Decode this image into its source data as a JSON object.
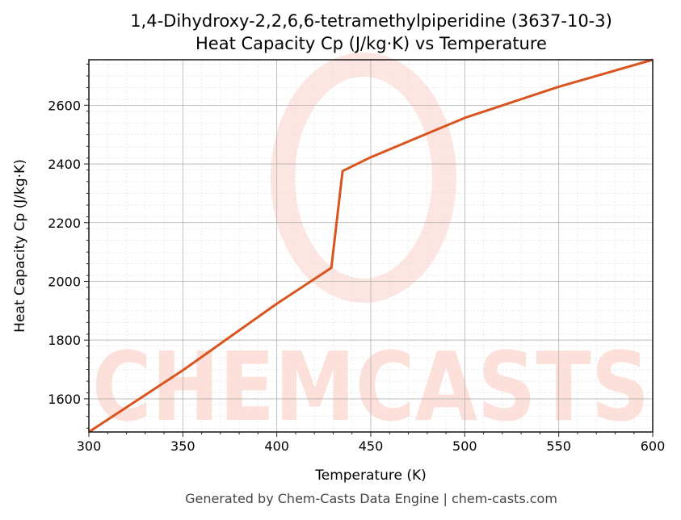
{
  "header": {
    "title_line1": "1,4-Dihydroxy-2,2,6,6-tetramethylpiperidine (3637-10-3)",
    "title_line2": "Heat Capacity Cp (J/kg·K) vs Temperature"
  },
  "footer": {
    "text": "Generated by Chem-Casts Data Engine | chem-casts.com"
  },
  "watermark": {
    "text": "CHEMCASTS",
    "color": "#fde0da"
  },
  "colors": {
    "line": "#d9541e",
    "grid_major": "#b0b0b0",
    "grid_minor": "#e0e0e0"
  },
  "chart_data": {
    "type": "line",
    "title": "1,4-Dihydroxy-2,2,6,6-tetramethylpiperidine (3637-10-3)\nHeat Capacity Cp (J/kg·K) vs Temperature",
    "xlabel": "Temperature (K)",
    "ylabel": "Heat Capacity Cp (J/kg·K)",
    "xlim": [
      300,
      600
    ],
    "ylim": [
      1487,
      2755
    ],
    "xticks": [
      300,
      350,
      400,
      450,
      500,
      550,
      600
    ],
    "yticks": [
      1600,
      1800,
      2000,
      2200,
      2400,
      2600
    ],
    "grid": true,
    "series": [
      {
        "name": "Cp",
        "x": [
          300,
          350,
          400,
          429,
          435,
          450,
          500,
          550,
          600
        ],
        "y": [
          1487,
          1697,
          1924,
          2046,
          2376,
          2423,
          2557,
          2663,
          2755
        ]
      }
    ]
  }
}
